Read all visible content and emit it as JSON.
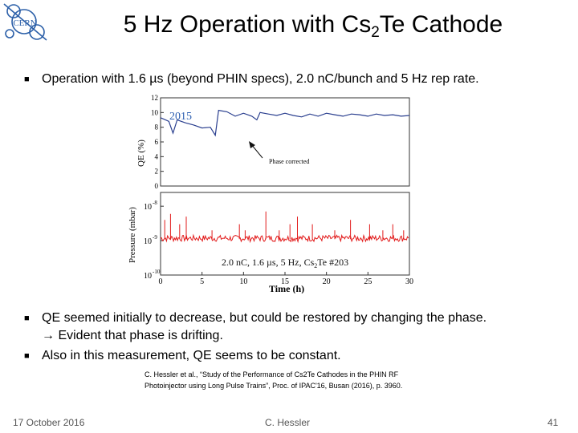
{
  "logo": {
    "text": "CERN",
    "color": "#2b5fa8"
  },
  "title": {
    "main": "5 Hz Operation with Cs",
    "sub": "2",
    "rest": "Te Cathode"
  },
  "bullets": [
    {
      "lines": [
        "Operation with 1.6 µs (beyond PHIN specs), 2.0 nC/bunch and 5 Hz rep rate."
      ]
    },
    {
      "lines": [
        "QE seemed initially to decrease, but could be restored by changing the phase.",
        "→ Evident that phase is drifting."
      ]
    },
    {
      "lines": [
        "Also in this measurement, QE seems to be constant."
      ]
    }
  ],
  "chart_data": [
    {
      "type": "line",
      "title": "",
      "year_label": "2015",
      "ylabel": "QE (%)",
      "xlabel": "",
      "xlim": [
        0,
        30
      ],
      "ylim": [
        0,
        12
      ],
      "y_ticks": [
        "0",
        "2",
        "4",
        "6",
        "8",
        "10",
        "12"
      ],
      "annotation": "Phase corrected",
      "series": [
        {
          "name": "QE",
          "color": "#2a3f8f",
          "x": [
            0,
            1,
            1.5,
            2,
            3,
            4,
            5,
            6,
            6.6,
            7,
            8,
            9,
            10,
            11,
            11.6,
            12,
            13,
            14,
            15,
            16,
            17,
            18,
            19,
            20,
            21,
            22,
            23,
            24,
            25,
            26,
            27,
            28,
            29,
            30
          ],
          "y": [
            9.3,
            8.8,
            7.2,
            9.0,
            8.6,
            8.3,
            7.9,
            8.0,
            6.9,
            10.3,
            10.1,
            9.5,
            9.9,
            9.5,
            9.0,
            10.0,
            9.8,
            9.6,
            9.9,
            9.6,
            9.4,
            9.8,
            9.5,
            9.9,
            9.7,
            9.5,
            9.8,
            9.7,
            9.5,
            9.8,
            9.6,
            9.7,
            9.5,
            9.6
          ]
        }
      ]
    },
    {
      "type": "line",
      "title": "",
      "ylabel": "Pressure (mbar)",
      "xlabel": "Time (h)",
      "xlim": [
        0,
        30
      ],
      "y_ticks": [
        "10",
        "10",
        "10"
      ],
      "y_tick_exponents": [
        "-8",
        "-9",
        "-10"
      ],
      "x_ticks": [
        "0",
        "5",
        "10",
        "15",
        "20",
        "25",
        "30"
      ],
      "annotation": {
        "text": "2.0 nC, 1.6 µs, 5 Hz, Cs",
        "sub": "2",
        "rest": "Te #203"
      },
      "series": [
        {
          "name": "Pressure",
          "color": "#e21b1b",
          "baseline": 1.1e-09,
          "spikes_x": [
            0.5,
            1.2,
            2.3,
            3.1,
            6.2,
            9.5,
            10.2,
            12.7,
            14.3,
            15.6,
            16.5,
            18.3,
            21.0,
            22.9,
            25.2,
            26.8,
            28.0,
            29.3
          ],
          "spikes_y": [
            4e-09,
            6e-09,
            3e-09,
            5e-09,
            2e-09,
            3e-09,
            2e-09,
            7e-09,
            2e-09,
            3e-09,
            5e-09,
            3e-09,
            2e-09,
            4e-09,
            3e-09,
            2e-09,
            3e-09,
            2e-09
          ]
        }
      ]
    }
  ],
  "reference": {
    "line1": "C. Hessler et al., “Study of the Performance of Cs2Te Cathodes in the PHIN RF",
    "line2": "Photoinjector using Long Pulse Trains”, Proc. of IPAC'16, Busan (2016), p. 3960."
  },
  "footer": {
    "date": "17 October 2016",
    "author": "C. Hessler",
    "page": "41"
  }
}
